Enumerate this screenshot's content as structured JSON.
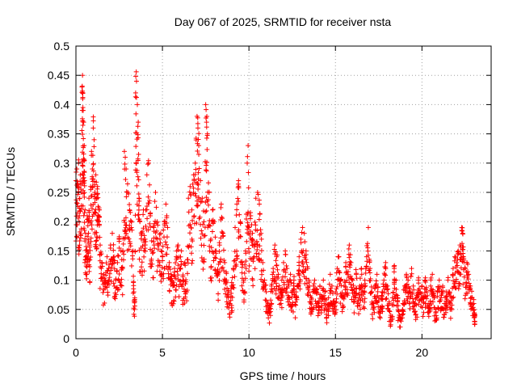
{
  "chart_data": {
    "type": "scatter",
    "title": "Day 067 of 2025, SRMTID for receiver nsta",
    "xlabel": "GPS time / hours",
    "ylabel": "SRMTID / TECUs",
    "xlim": [
      0,
      24
    ],
    "ylim": [
      0,
      0.5
    ],
    "xticks": [
      0,
      5,
      10,
      15,
      20
    ],
    "xtick_labels": [
      "0",
      "5",
      "10",
      "15",
      "20"
    ],
    "yticks": [
      0,
      0.05,
      0.1,
      0.15,
      0.2,
      0.25,
      0.3,
      0.35,
      0.4,
      0.45,
      0.5
    ],
    "ytick_labels": [
      "0",
      "0.05",
      "0.1",
      "0.15",
      "0.2",
      "0.25",
      "0.3",
      "0.35",
      "0.4",
      "0.45",
      "0.5"
    ],
    "grid": true,
    "marker": "+",
    "color": "#ff0000",
    "envelope_note": "approximate density envelope of the scatter (x hours, y TECU)",
    "series": [
      {
        "name": "SRMTID",
        "points": [
          [
            0.0,
            0.27
          ],
          [
            0.05,
            0.29
          ],
          [
            0.1,
            0.26
          ],
          [
            0.15,
            0.3
          ],
          [
            0.2,
            0.21
          ],
          [
            0.25,
            0.28
          ],
          [
            0.3,
            0.25
          ],
          [
            0.35,
            0.43
          ],
          [
            0.38,
            0.45
          ],
          [
            0.4,
            0.42
          ],
          [
            0.42,
            0.39
          ],
          [
            0.45,
            0.37
          ],
          [
            0.48,
            0.33
          ],
          [
            0.5,
            0.27
          ],
          [
            0.55,
            0.18
          ],
          [
            0.6,
            0.14
          ],
          [
            0.65,
            0.21
          ],
          [
            0.7,
            0.2
          ],
          [
            0.75,
            0.24
          ],
          [
            0.8,
            0.16
          ],
          [
            0.85,
            0.26
          ],
          [
            0.9,
            0.32
          ],
          [
            0.95,
            0.29
          ],
          [
            1.0,
            0.36
          ],
          [
            1.05,
            0.34
          ],
          [
            1.1,
            0.25
          ],
          [
            1.15,
            0.28
          ],
          [
            1.2,
            0.24
          ],
          [
            1.25,
            0.26
          ],
          [
            1.3,
            0.2
          ],
          [
            1.35,
            0.22
          ],
          [
            1.4,
            0.16
          ],
          [
            1.5,
            0.13
          ],
          [
            1.6,
            0.11
          ],
          [
            1.7,
            0.1
          ],
          [
            1.8,
            0.14
          ],
          [
            1.9,
            0.12
          ],
          [
            2.0,
            0.16
          ],
          [
            2.1,
            0.18
          ],
          [
            2.2,
            0.14
          ],
          [
            2.3,
            0.1
          ],
          [
            2.4,
            0.13
          ],
          [
            2.5,
            0.17
          ],
          [
            2.6,
            0.15
          ],
          [
            2.7,
            0.12
          ],
          [
            2.8,
            0.32
          ],
          [
            2.85,
            0.31
          ],
          [
            2.9,
            0.29
          ],
          [
            3.0,
            0.25
          ],
          [
            3.1,
            0.22
          ],
          [
            3.2,
            0.2
          ],
          [
            3.3,
            0.15
          ],
          [
            3.35,
            0.08
          ],
          [
            3.4,
            0.07
          ],
          [
            3.45,
            0.42
          ],
          [
            3.5,
            0.44
          ],
          [
            3.55,
            0.4
          ],
          [
            3.6,
            0.37
          ],
          [
            3.65,
            0.24
          ],
          [
            3.7,
            0.2
          ],
          [
            3.8,
            0.18
          ],
          [
            3.9,
            0.22
          ],
          [
            4.0,
            0.17
          ],
          [
            4.1,
            0.28
          ],
          [
            4.2,
            0.3
          ],
          [
            4.3,
            0.21
          ],
          [
            4.4,
            0.15
          ],
          [
            4.5,
            0.19
          ],
          [
            4.6,
            0.25
          ],
          [
            4.7,
            0.2
          ],
          [
            4.8,
            0.16
          ],
          [
            4.9,
            0.18
          ],
          [
            5.0,
            0.14
          ],
          [
            5.1,
            0.2
          ],
          [
            5.2,
            0.23
          ],
          [
            5.3,
            0.19
          ],
          [
            5.4,
            0.13
          ],
          [
            5.5,
            0.11
          ],
          [
            5.6,
            0.09
          ],
          [
            5.7,
            0.12
          ],
          [
            5.8,
            0.14
          ],
          [
            5.9,
            0.16
          ],
          [
            6.0,
            0.12
          ],
          [
            6.1,
            0.15
          ],
          [
            6.2,
            0.1
          ],
          [
            6.3,
            0.13
          ],
          [
            6.4,
            0.08
          ],
          [
            6.5,
            0.24
          ],
          [
            6.6,
            0.26
          ],
          [
            6.7,
            0.22
          ],
          [
            6.8,
            0.28
          ],
          [
            6.9,
            0.3
          ],
          [
            7.0,
            0.38
          ],
          [
            7.05,
            0.36
          ],
          [
            7.1,
            0.33
          ],
          [
            7.2,
            0.27
          ],
          [
            7.3,
            0.24
          ],
          [
            7.4,
            0.2
          ],
          [
            7.5,
            0.4
          ],
          [
            7.55,
            0.37
          ],
          [
            7.6,
            0.35
          ],
          [
            7.7,
            0.25
          ],
          [
            7.8,
            0.17
          ],
          [
            7.9,
            0.22
          ],
          [
            8.0,
            0.2
          ],
          [
            8.1,
            0.15
          ],
          [
            8.2,
            0.11
          ],
          [
            8.3,
            0.16
          ],
          [
            8.4,
            0.23
          ],
          [
            8.5,
            0.18
          ],
          [
            8.6,
            0.13
          ],
          [
            8.7,
            0.1
          ],
          [
            8.8,
            0.08
          ],
          [
            8.9,
            0.06
          ],
          [
            9.0,
            0.09
          ],
          [
            9.1,
            0.12
          ],
          [
            9.2,
            0.19
          ],
          [
            9.3,
            0.23
          ],
          [
            9.4,
            0.27
          ],
          [
            9.5,
            0.2
          ],
          [
            9.6,
            0.13
          ],
          [
            9.7,
            0.1
          ],
          [
            9.8,
            0.15
          ],
          [
            9.9,
            0.3
          ],
          [
            9.95,
            0.33
          ],
          [
            10.0,
            0.19
          ],
          [
            10.1,
            0.21
          ],
          [
            10.2,
            0.17
          ],
          [
            10.3,
            0.14
          ],
          [
            10.4,
            0.24
          ],
          [
            10.5,
            0.25
          ],
          [
            10.6,
            0.23
          ],
          [
            10.7,
            0.18
          ],
          [
            10.8,
            0.13
          ],
          [
            10.9,
            0.1
          ],
          [
            11.0,
            0.08
          ],
          [
            11.1,
            0.06
          ],
          [
            11.2,
            0.05
          ],
          [
            11.3,
            0.09
          ],
          [
            11.4,
            0.12
          ],
          [
            11.5,
            0.16
          ],
          [
            11.6,
            0.14
          ],
          [
            11.7,
            0.11
          ],
          [
            11.8,
            0.08
          ],
          [
            11.9,
            0.1
          ],
          [
            12.0,
            0.13
          ],
          [
            12.1,
            0.15
          ],
          [
            12.2,
            0.12
          ],
          [
            12.3,
            0.09
          ],
          [
            12.4,
            0.11
          ],
          [
            12.5,
            0.08
          ],
          [
            12.6,
            0.1
          ],
          [
            12.7,
            0.07
          ],
          [
            12.8,
            0.09
          ],
          [
            12.9,
            0.14
          ],
          [
            13.0,
            0.17
          ],
          [
            13.1,
            0.19
          ],
          [
            13.2,
            0.18
          ],
          [
            13.3,
            0.15
          ],
          [
            13.4,
            0.12
          ],
          [
            13.5,
            0.09
          ],
          [
            13.6,
            0.07
          ],
          [
            13.7,
            0.08
          ],
          [
            13.8,
            0.1
          ],
          [
            13.9,
            0.08
          ],
          [
            14.0,
            0.06
          ],
          [
            14.1,
            0.09
          ],
          [
            14.2,
            0.07
          ],
          [
            14.3,
            0.1
          ],
          [
            14.4,
            0.08
          ],
          [
            14.5,
            0.05
          ],
          [
            14.6,
            0.07
          ],
          [
            14.7,
            0.11
          ],
          [
            14.8,
            0.09
          ],
          [
            14.9,
            0.06
          ],
          [
            15.0,
            0.08
          ],
          [
            15.1,
            0.12
          ],
          [
            15.2,
            0.14
          ],
          [
            15.3,
            0.1
          ],
          [
            15.4,
            0.07
          ],
          [
            15.5,
            0.09
          ],
          [
            15.6,
            0.13
          ],
          [
            15.7,
            0.11
          ],
          [
            15.8,
            0.16
          ],
          [
            15.9,
            0.13
          ],
          [
            16.0,
            0.1
          ],
          [
            16.1,
            0.08
          ],
          [
            16.2,
            0.11
          ],
          [
            16.3,
            0.06
          ],
          [
            16.4,
            0.09
          ],
          [
            16.5,
            0.12
          ],
          [
            16.6,
            0.08
          ],
          [
            16.7,
            0.1
          ],
          [
            16.8,
            0.14
          ],
          [
            16.9,
            0.19
          ],
          [
            17.0,
            0.12
          ],
          [
            17.1,
            0.08
          ],
          [
            17.2,
            0.06
          ],
          [
            17.3,
            0.09
          ],
          [
            17.4,
            0.11
          ],
          [
            17.5,
            0.07
          ],
          [
            17.6,
            0.05
          ],
          [
            17.7,
            0.08
          ],
          [
            17.8,
            0.1
          ],
          [
            17.9,
            0.13
          ],
          [
            18.0,
            0.09
          ],
          [
            18.1,
            0.06
          ],
          [
            18.2,
            0.04
          ],
          [
            18.3,
            0.07
          ],
          [
            18.4,
            0.12
          ],
          [
            18.5,
            0.1
          ],
          [
            18.6,
            0.07
          ],
          [
            18.7,
            0.04
          ],
          [
            18.8,
            0.03
          ],
          [
            18.9,
            0.06
          ],
          [
            19.0,
            0.09
          ],
          [
            19.1,
            0.11
          ],
          [
            19.2,
            0.1
          ],
          [
            19.3,
            0.08
          ],
          [
            19.4,
            0.12
          ],
          [
            19.5,
            0.09
          ],
          [
            19.6,
            0.06
          ],
          [
            19.7,
            0.07
          ],
          [
            19.8,
            0.1
          ],
          [
            19.9,
            0.08
          ],
          [
            20.0,
            0.09
          ],
          [
            20.1,
            0.07
          ],
          [
            20.2,
            0.1
          ],
          [
            20.3,
            0.08
          ],
          [
            20.4,
            0.06
          ],
          [
            20.5,
            0.09
          ],
          [
            20.6,
            0.11
          ],
          [
            20.7,
            0.07
          ],
          [
            20.8,
            0.05
          ],
          [
            20.9,
            0.08
          ],
          [
            21.0,
            0.1
          ],
          [
            21.1,
            0.07
          ],
          [
            21.2,
            0.09
          ],
          [
            21.3,
            0.06
          ],
          [
            21.4,
            0.08
          ],
          [
            21.5,
            0.1
          ],
          [
            21.6,
            0.08
          ],
          [
            21.7,
            0.07
          ],
          [
            21.8,
            0.12
          ],
          [
            21.9,
            0.14
          ],
          [
            22.0,
            0.13
          ],
          [
            22.1,
            0.15
          ],
          [
            22.2,
            0.16
          ],
          [
            22.3,
            0.19
          ],
          [
            22.35,
            0.18
          ],
          [
            22.4,
            0.14
          ],
          [
            22.5,
            0.12
          ],
          [
            22.6,
            0.13
          ],
          [
            22.7,
            0.11
          ],
          [
            22.8,
            0.09
          ],
          [
            22.9,
            0.07
          ],
          [
            23.0,
            0.06
          ],
          [
            23.05,
            0.04
          ]
        ]
      }
    ]
  }
}
